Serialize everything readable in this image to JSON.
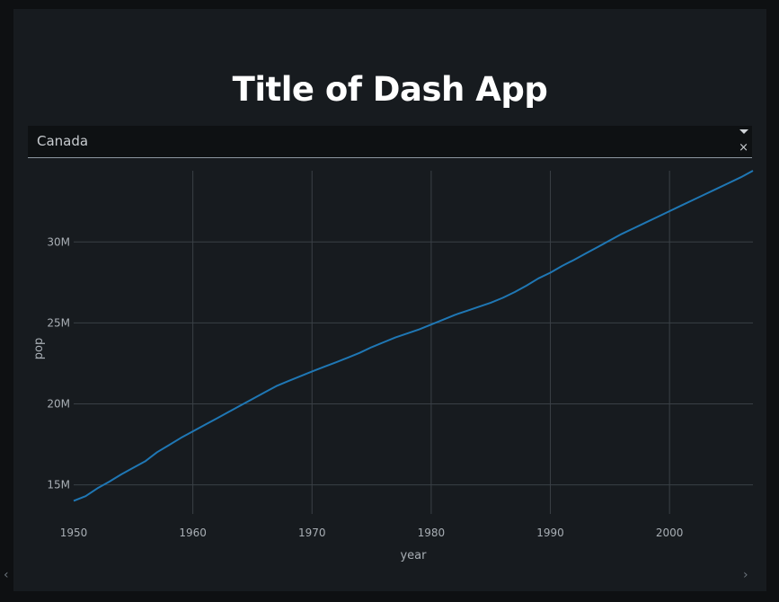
{
  "app": {
    "title": "Title of Dash App"
  },
  "dropdown": {
    "selected": "Canada",
    "clear_symbol": "×",
    "caret_icon": "caret-down-icon"
  },
  "chart_data": {
    "type": "line",
    "xlabel": "year",
    "ylabel": "pop",
    "xlim": [
      1950,
      2007
    ],
    "ylim": [
      13200000,
      34400000
    ],
    "x_ticks": [
      1950,
      1960,
      1970,
      1980,
      1990,
      2000
    ],
    "y_ticks": [
      15000000,
      20000000,
      25000000,
      30000000
    ],
    "y_tick_labels": [
      "15M",
      "20M",
      "25M",
      "30M"
    ],
    "grid": true,
    "line_color": "#1f77b4",
    "series": [
      {
        "x": [
          1950,
          1951,
          1952,
          1953,
          1954,
          1955,
          1956,
          1957,
          1958,
          1959,
          1960,
          1961,
          1962,
          1963,
          1964,
          1965,
          1966,
          1967,
          1968,
          1969,
          1970,
          1971,
          1972,
          1973,
          1974,
          1975,
          1976,
          1977,
          1978,
          1979,
          1980,
          1981,
          1982,
          1983,
          1984,
          1985,
          1986,
          1987,
          1988,
          1989,
          1990,
          1991,
          1992,
          1993,
          1994,
          1995,
          1996,
          1997,
          1998,
          1999,
          2000,
          2001,
          2002,
          2003,
          2004,
          2005,
          2006,
          2007
        ],
        "values": [
          14011422,
          14300000,
          14785584,
          15200000,
          15650000,
          16050000,
          16450000,
          17010154,
          17450000,
          17900000,
          18300000,
          18700000,
          19100000,
          19500000,
          19900000,
          20300000,
          20700000,
          21100000,
          21400000,
          21700000,
          22000000,
          22284500,
          22560000,
          22850000,
          23150000,
          23500000,
          23800000,
          24100000,
          24350000,
          24600000,
          24900000,
          25200000,
          25500000,
          25750000,
          26000000,
          26250000,
          26549700,
          26900000,
          27300000,
          27750000,
          28100000,
          28523830,
          28900000,
          29300000,
          29700000,
          30100000,
          30500000,
          30850000,
          31200000,
          31550000,
          31902268,
          32250000,
          32600000,
          32950000,
          33300000,
          33650000,
          34000000,
          34400000
        ]
      }
    ]
  },
  "scroll": {
    "left_arrow": "‹",
    "right_arrow": "›"
  }
}
